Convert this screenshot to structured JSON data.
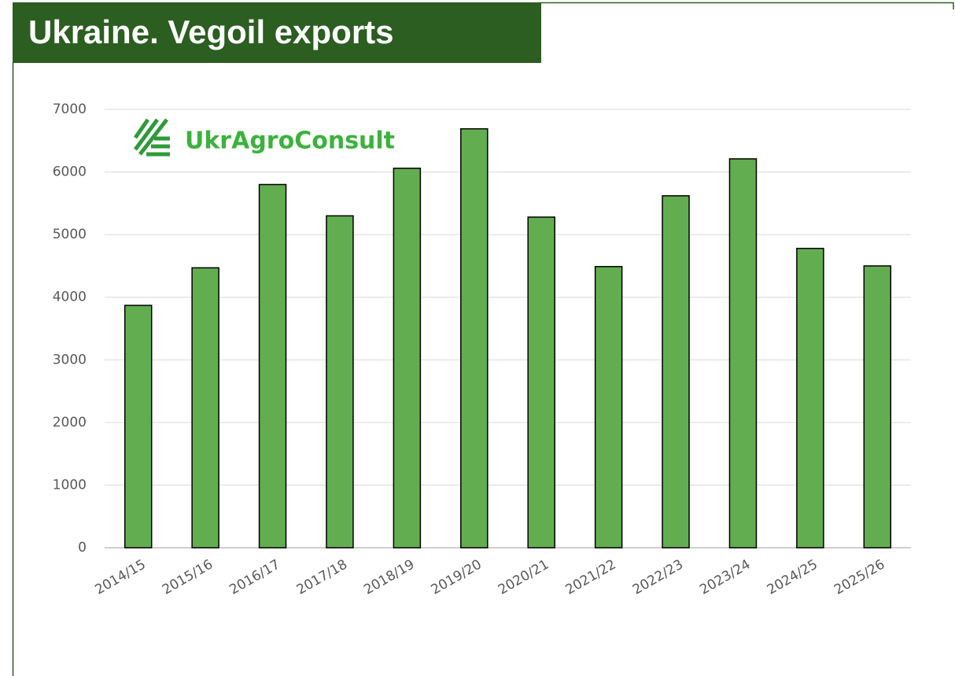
{
  "chart_data": {
    "type": "bar",
    "title": "Ukraine. Vegoil exports",
    "logo": "UkrAgroConsult",
    "categories": [
      "2014/15",
      "2015/16",
      "2016/17",
      "2017/18",
      "2018/19",
      "2019/20",
      "2020/21",
      "2021/22",
      "2022/23",
      "2023/24",
      "2024/25",
      "2025/26"
    ],
    "values": [
      3870,
      4470,
      5800,
      5300,
      6060,
      6690,
      5280,
      4490,
      5620,
      6210,
      4780,
      4500
    ],
    "color": "#63ad51",
    "ylim": [
      0,
      7000
    ],
    "yticks": [
      0,
      1000,
      2000,
      3000,
      4000,
      5000,
      6000,
      7000
    ],
    "grid": true
  }
}
